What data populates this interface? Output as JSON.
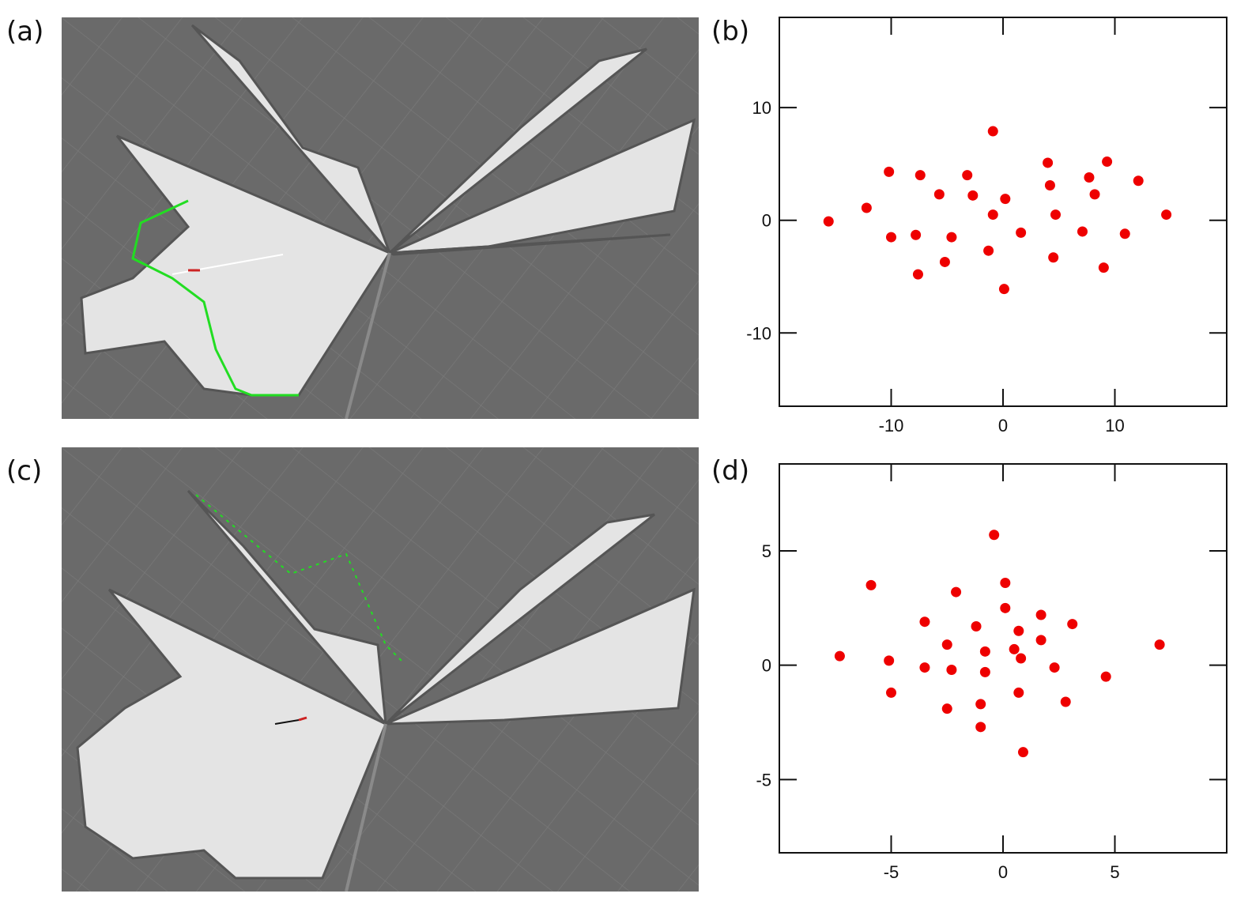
{
  "panels": {
    "a": "(a)",
    "b": "(b)",
    "c": "(c)",
    "d": "(d)"
  },
  "colors": {
    "map_background": "#6a6a6a",
    "free_space": "#e4e4e4",
    "scan": "#22dd22",
    "points": "#ee0000"
  },
  "chart_data": [
    {
      "panel": "b",
      "type": "scatter",
      "title": "",
      "xlabel": "",
      "ylabel": "",
      "xlim": [
        -20,
        20
      ],
      "ylim": [
        -16.5,
        18
      ],
      "xticks": [
        -10,
        0,
        10
      ],
      "yticks": [
        -10,
        0,
        10
      ],
      "grid": false,
      "points": [
        [
          -15.6,
          -0.1
        ],
        [
          -12.2,
          1.1
        ],
        [
          -10.2,
          4.3
        ],
        [
          -10.0,
          -1.5
        ],
        [
          -7.8,
          -1.3
        ],
        [
          -7.6,
          -4.8
        ],
        [
          -7.4,
          4.0
        ],
        [
          -5.7,
          2.3
        ],
        [
          -5.2,
          -3.7
        ],
        [
          -4.6,
          -1.5
        ],
        [
          -3.2,
          4.0
        ],
        [
          -2.7,
          2.2
        ],
        [
          -1.3,
          -2.7
        ],
        [
          -0.9,
          0.5
        ],
        [
          -0.9,
          7.9
        ],
        [
          0.2,
          1.9
        ],
        [
          0.1,
          -6.1
        ],
        [
          1.6,
          -1.1
        ],
        [
          4.0,
          5.1
        ],
        [
          4.2,
          3.1
        ],
        [
          4.5,
          -3.3
        ],
        [
          4.7,
          0.5
        ],
        [
          7.1,
          -1.0
        ],
        [
          7.7,
          3.8
        ],
        [
          8.2,
          2.3
        ],
        [
          9.0,
          -4.2
        ],
        [
          9.3,
          5.2
        ],
        [
          10.9,
          -1.2
        ],
        [
          12.1,
          3.5
        ],
        [
          14.6,
          0.5
        ]
      ]
    },
    {
      "panel": "d",
      "type": "scatter",
      "title": "",
      "xlabel": "",
      "ylabel": "",
      "xlim": [
        -10,
        10
      ],
      "ylim": [
        -8.2,
        8.8
      ],
      "xticks": [
        -5,
        0,
        5
      ],
      "yticks": [
        -5,
        0,
        5
      ],
      "grid": false,
      "points": [
        [
          -7.3,
          0.4
        ],
        [
          -5.9,
          3.5
        ],
        [
          -5.1,
          0.2
        ],
        [
          -5.0,
          -1.2
        ],
        [
          -3.5,
          1.9
        ],
        [
          -3.5,
          -0.1
        ],
        [
          -2.5,
          0.9
        ],
        [
          -2.5,
          -1.9
        ],
        [
          -2.3,
          -0.2
        ],
        [
          -2.1,
          3.2
        ],
        [
          -1.2,
          1.7
        ],
        [
          -1.0,
          -1.7
        ],
        [
          -1.0,
          -2.7
        ],
        [
          -0.8,
          0.6
        ],
        [
          -0.8,
          -0.3
        ],
        [
          -0.4,
          5.7
        ],
        [
          0.1,
          3.6
        ],
        [
          0.1,
          2.5
        ],
        [
          0.5,
          0.7
        ],
        [
          0.7,
          1.5
        ],
        [
          0.7,
          -1.2
        ],
        [
          0.8,
          0.3
        ],
        [
          0.9,
          -3.8
        ],
        [
          1.7,
          2.2
        ],
        [
          1.7,
          1.1
        ],
        [
          2.3,
          -0.1
        ],
        [
          2.8,
          -1.6
        ],
        [
          3.1,
          1.8
        ],
        [
          4.6,
          -0.5
        ],
        [
          7.0,
          0.9
        ]
      ]
    }
  ]
}
